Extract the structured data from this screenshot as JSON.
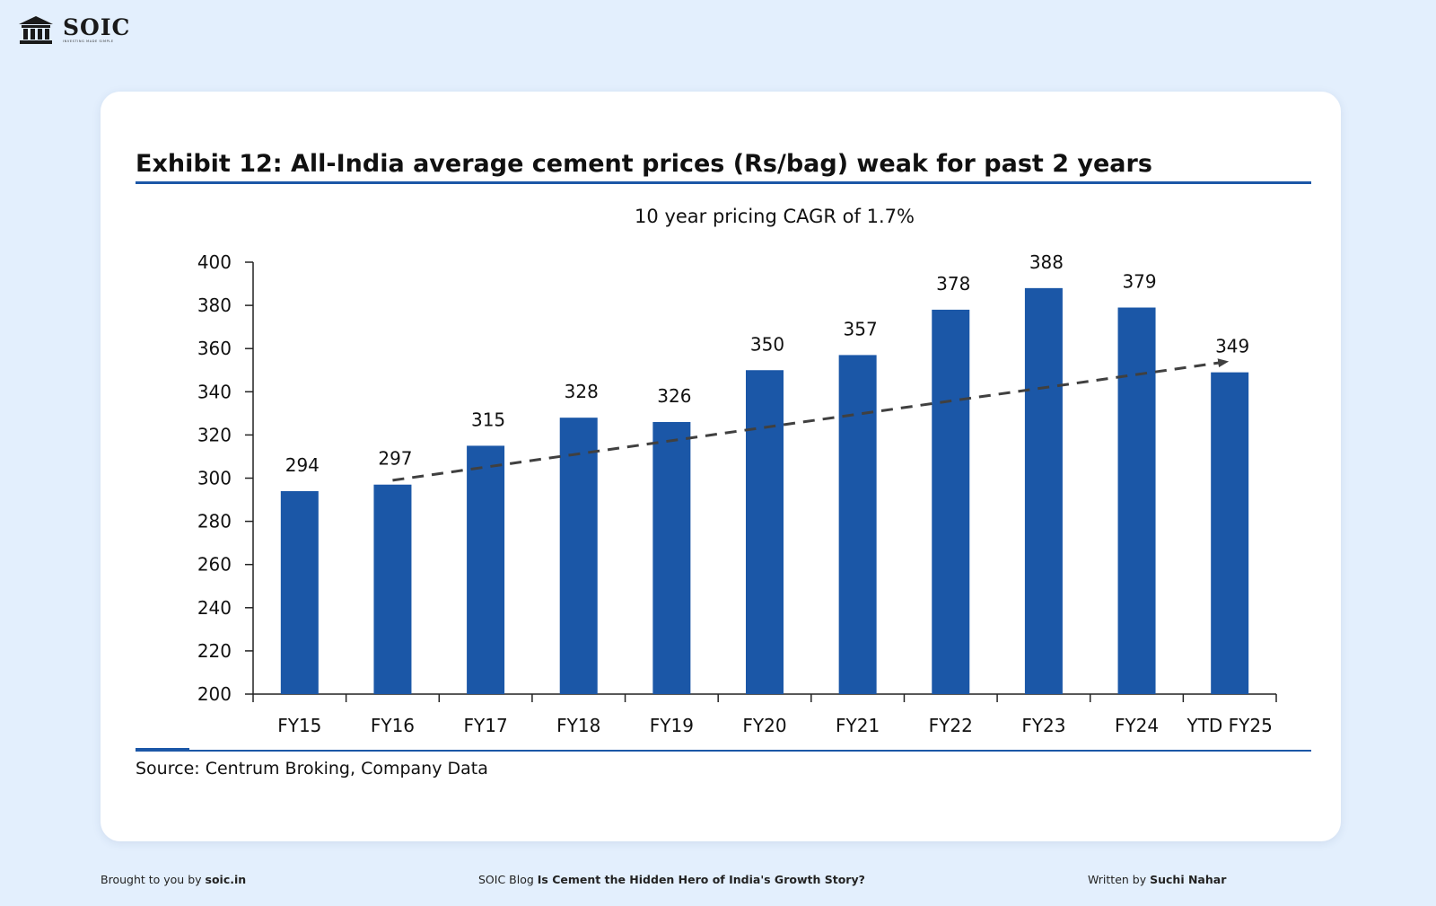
{
  "brand": {
    "name": "SOIC",
    "tagline": "INVESTING MADE SIMPLE"
  },
  "colors": {
    "page_background": "#e3effd",
    "card_background": "#ffffff",
    "bar": "#1b57a7",
    "rule": "#1b57a7",
    "trend": "#404040"
  },
  "footer": {
    "left_prefix": "Brought to you by",
    "left_link": "soic.in",
    "mid_prefix": "SOIC Blog",
    "mid_title": "Is Cement the Hidden Hero of India's Growth Story?",
    "right_prefix": "Written by",
    "right_author": "Suchi Nahar"
  },
  "chart_data": {
    "type": "bar",
    "title": "Exhibit 12: All-India average cement prices (Rs/bag) weak for past 2 years",
    "subtitle": "10 year pricing CAGR of 1.7%",
    "source": "Source: Centrum Broking, Company Data",
    "categories": [
      "FY15",
      "FY16",
      "FY17",
      "FY18",
      "FY19",
      "FY20",
      "FY21",
      "FY22",
      "FY23",
      "FY24",
      "YTD FY25"
    ],
    "values": [
      294,
      297,
      315,
      328,
      326,
      350,
      357,
      378,
      388,
      379,
      349
    ],
    "data_labels": [
      "294",
      "297",
      "315",
      "328",
      "326",
      "350",
      "357",
      "378",
      "388",
      "379",
      "349"
    ],
    "ylim": [
      200,
      400
    ],
    "yticks": [
      400,
      380,
      360,
      340,
      320,
      300,
      280,
      260,
      240,
      220,
      200
    ],
    "grid": false,
    "legend": "none",
    "trend_line": {
      "style": "dashed-arrow",
      "from_category": "FY16",
      "from_value": 299,
      "to_category": "YTD FY25",
      "to_value": 354
    }
  }
}
